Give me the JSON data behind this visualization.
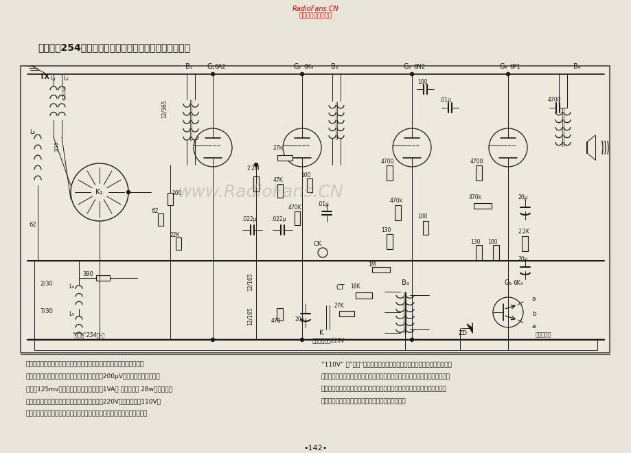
{
  "page_bg": "#e8e4d8",
  "header_text_line1": "RadioFans.CN",
  "header_text_line2": "收音机爱好者资料库",
  "header_color": "#cc0000",
  "title": "工农兵牌254型交流五管二波段（上海无线电二厂产品）",
  "watermark": "www.RadioFans.CN",
  "watermark_color": "#b0a898",
  "watermark_alpha": 0.5,
  "footer_col1": [
    "【说明】本机系台式结构，灵敏度高，选择性好，具有音调控制器。适于",
    "收听不同音色之节目，整机相对灵敏度，不差于200μV；给音机插口灵敏度，",
    "不差于125mv，不失真输出功率，不差于1VA； 电力消耗， 28w左右。本机",
    "机后具在电源交接接触器，在出厂时一般均接为220V；如果当地是110V之",
    "电源电压，在开开电源之前，用起子（或硬币）拨转交接接触器的盖头，使"
  ],
  "footer_col2": [
    "“110V” 与“白点”标记对准，然后使用。使用电蒙机如果产生嘲音时，可",
    "将拾音头方向互换，同时应将调谐旋鈕将旋至无电台处，以免电台信号干扰。当",
    "收音时应将拾音头拔去。地线在一般情况下以连接为宜，欲接收远地电台时，",
    "可使用室外天线，但必须装设避雷装置，以防雷击。"
  ],
  "page_number": "•142•",
  "dc": "#1a1a1a",
  "lw_main": 1.2,
  "lw_thin": 0.7
}
